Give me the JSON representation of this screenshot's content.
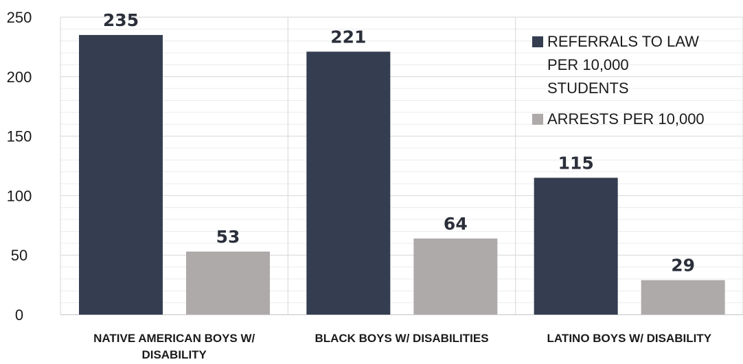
{
  "chart_data": {
    "type": "bar",
    "categories": [
      [
        "NATIVE AMERICAN BOYS W/",
        "DISABILITY"
      ],
      [
        "BLACK BOYS W/ DISABILITIES"
      ],
      [
        "LATINO BOYS W/ DISABILITY"
      ]
    ],
    "series": [
      {
        "name": [
          "REFERRALS TO LAW",
          "PER 10,000",
          "STUDENTS"
        ],
        "values": [
          235,
          221,
          115
        ],
        "color": "#343e50"
      },
      {
        "name": [
          "ARRESTS PER 10,000"
        ],
        "values": [
          53,
          64,
          29
        ],
        "color": "#aeaaaa"
      }
    ],
    "title": "",
    "xlabel": "",
    "ylabel": "",
    "ylim": [
      0,
      250
    ],
    "yticks": [
      0,
      50,
      100,
      150,
      200,
      250
    ],
    "minor_grid_step": 10,
    "grid": true,
    "legend_position": "top-right"
  }
}
